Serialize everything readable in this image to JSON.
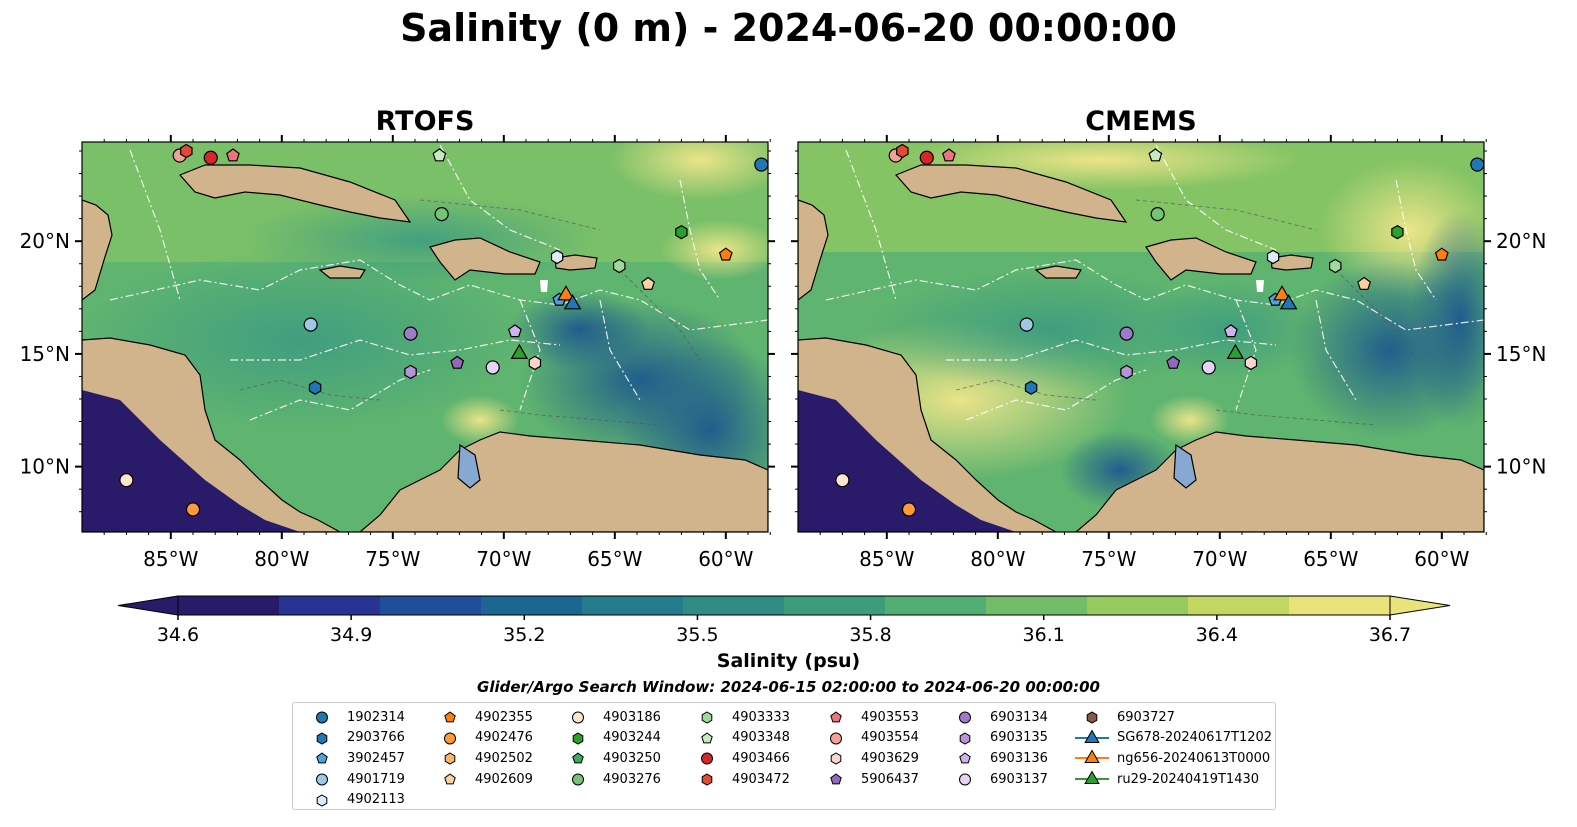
{
  "title": "Salinity (0 m) - 2024-06-20 00:00:00",
  "panels": [
    {
      "title": "RTOFS"
    },
    {
      "title": "CMEMS"
    }
  ],
  "lat_ticks": [
    "20°N",
    "15°N",
    "10°N"
  ],
  "lon_ticks": [
    "85°W",
    "80°W",
    "75°W",
    "70°W",
    "65°W",
    "60°W"
  ],
  "colorbar": {
    "ticks": [
      "34.6",
      "34.9",
      "35.2",
      "35.5",
      "35.8",
      "36.1",
      "36.4",
      "36.7"
    ],
    "label": "Salinity (psu)",
    "min": 34.6,
    "max": 36.7,
    "colors": [
      "#2a1b6a",
      "#283494",
      "#1f4f99",
      "#1c6791",
      "#247b8c",
      "#2f8c85",
      "#3c9d7d",
      "#53ae74",
      "#72bd67",
      "#96ca5f",
      "#c1d760",
      "#eae27b"
    ]
  },
  "search_window": "Glider/Argo Search Window: 2024-06-15 02:00:00 to 2024-06-20 00:00:00",
  "map_colors": {
    "land": "#d2b48c",
    "lake": "#87a8d0",
    "ocean_deep": "#2a1b6a"
  },
  "legend": [
    [
      {
        "label": "1902314",
        "shape": "circle",
        "color": "#1f77b4"
      },
      {
        "label": "2903766",
        "shape": "hexagon",
        "color": "#1f77b4"
      },
      {
        "label": "3902457",
        "shape": "pentagon",
        "color": "#4fa3dc"
      },
      {
        "label": "4901719",
        "shape": "circle",
        "color": "#9ecae1"
      },
      {
        "label": "4902113",
        "shape": "hexagon",
        "color": "#deebf7"
      }
    ],
    [
      {
        "label": "4902355",
        "shape": "pentagon",
        "color": "#ff7f0e"
      },
      {
        "label": "4902476",
        "shape": "circle",
        "color": "#ff9a3c"
      },
      {
        "label": "4902502",
        "shape": "hexagon",
        "color": "#fdb56b"
      },
      {
        "label": "4902609",
        "shape": "pentagon",
        "color": "#fdd0a2"
      }
    ],
    [
      {
        "label": "4903186",
        "shape": "circle",
        "color": "#fee6ce"
      },
      {
        "label": "4903244",
        "shape": "hexagon",
        "color": "#2ca02c"
      },
      {
        "label": "4903250",
        "shape": "pentagon",
        "color": "#41ab5d"
      },
      {
        "label": "4903276",
        "shape": "circle",
        "color": "#74c476"
      }
    ],
    [
      {
        "label": "4903333",
        "shape": "hexagon",
        "color": "#a1d99b"
      },
      {
        "label": "4903348",
        "shape": "pentagon",
        "color": "#c7e9c0"
      },
      {
        "label": "4903466",
        "shape": "circle",
        "color": "#d62728"
      },
      {
        "label": "4903472",
        "shape": "hexagon",
        "color": "#e34a33"
      }
    ],
    [
      {
        "label": "4903553",
        "shape": "pentagon",
        "color": "#f0727a"
      },
      {
        "label": "4903554",
        "shape": "circle",
        "color": "#f4a09a"
      },
      {
        "label": "4903629",
        "shape": "hexagon",
        "color": "#fcd5d0"
      },
      {
        "label": "5906437",
        "shape": "pentagon",
        "color": "#9467bd"
      }
    ],
    [
      {
        "label": "6903134",
        "shape": "circle",
        "color": "#9e7bc9"
      },
      {
        "label": "6903135",
        "shape": "hexagon",
        "color": "#b594d8"
      },
      {
        "label": "6903136",
        "shape": "pentagon",
        "color": "#cdb4ea"
      },
      {
        "label": "6903137",
        "shape": "circle",
        "color": "#e6d3f5"
      }
    ],
    [
      {
        "label": "6903727",
        "shape": "hexagon",
        "color": "#8c564b"
      },
      {
        "label": "SG678-20240617T1202",
        "shape": "triangle",
        "color": "#1f77b4"
      },
      {
        "label": "ng656-20240613T0000",
        "shape": "triangle",
        "color": "#ff7f0e"
      },
      {
        "label": "ru29-20240419T1430",
        "shape": "triangle",
        "color": "#2ca02c"
      }
    ]
  ],
  "markers": [
    {
      "id": "1902314",
      "lon": -58.4,
      "lat": 23.4
    },
    {
      "id": "4903554",
      "lon": -84.6,
      "lat": 23.8
    },
    {
      "id": "4903472",
      "lon": -84.3,
      "lat": 24.0
    },
    {
      "id": "4903466",
      "lon": -83.2,
      "lat": 23.7
    },
    {
      "id": "4903553",
      "lon": -82.2,
      "lat": 23.8
    },
    {
      "id": "4903348",
      "lon": -72.9,
      "lat": 23.8
    },
    {
      "id": "4903276",
      "lon": -72.8,
      "lat": 21.2
    },
    {
      "id": "4903244",
      "lon": -62.0,
      "lat": 20.4
    },
    {
      "id": "4902355",
      "lon": -60.0,
      "lat": 19.4
    },
    {
      "id": "4902113",
      "lon": -67.6,
      "lat": 19.3
    },
    {
      "id": "4903333",
      "lon": -64.8,
      "lat": 18.9
    },
    {
      "id": "4902609",
      "lon": -63.5,
      "lat": 18.1
    },
    {
      "id": "3902457",
      "lon": -67.5,
      "lat": 17.4
    },
    {
      "id": "4901719",
      "lon": -78.7,
      "lat": 16.3
    },
    {
      "id": "6903134",
      "lon": -74.2,
      "lat": 15.9
    },
    {
      "id": "6903136",
      "lon": -69.5,
      "lat": 16.0
    },
    {
      "id": "6903135",
      "lon": -74.2,
      "lat": 14.2
    },
    {
      "id": "5906437",
      "lon": -72.1,
      "lat": 14.6
    },
    {
      "id": "6903137",
      "lon": -70.5,
      "lat": 14.4
    },
    {
      "id": "4903629",
      "lon": -68.6,
      "lat": 14.6
    },
    {
      "id": "2903766",
      "lon": -78.5,
      "lat": 13.5
    },
    {
      "id": "4903186",
      "lon": -87.0,
      "lat": 9.4
    },
    {
      "id": "4902476",
      "lon": -84.0,
      "lat": 8.1
    },
    {
      "id": "ng656-20240613T0000",
      "lon": -67.2,
      "lat": 17.6
    },
    {
      "id": "SG678-20240617T1202",
      "lon": -66.9,
      "lat": 17.2
    },
    {
      "id": "ru29-20240419T1430",
      "lon": -69.3,
      "lat": 15.0
    }
  ]
}
